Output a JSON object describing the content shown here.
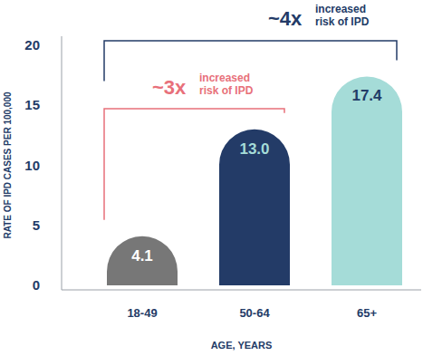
{
  "chart_data": {
    "type": "bar",
    "y_label": "RATE OF IPD CASES PER 100,000",
    "x_label": "AGE, YEARS",
    "categories": [
      "18-49",
      "50-64",
      "65+"
    ],
    "values": [
      4.1,
      13.0,
      17.4
    ],
    "value_labels": [
      "4.1",
      "13.0",
      "17.4"
    ],
    "colors": [
      "#777777",
      "#233b67",
      "#a5dcd8"
    ],
    "ylim": [
      0,
      20
    ],
    "yticks": [
      0,
      5,
      10,
      15,
      20
    ],
    "grid": false,
    "data_labels": true,
    "annotations": [
      {
        "text": "~3x",
        "lines": [
          "increased",
          "risk of IPD"
        ]
      },
      {
        "text": "~4x",
        "lines": [
          "increased",
          "risk of IPD"
        ]
      }
    ]
  }
}
